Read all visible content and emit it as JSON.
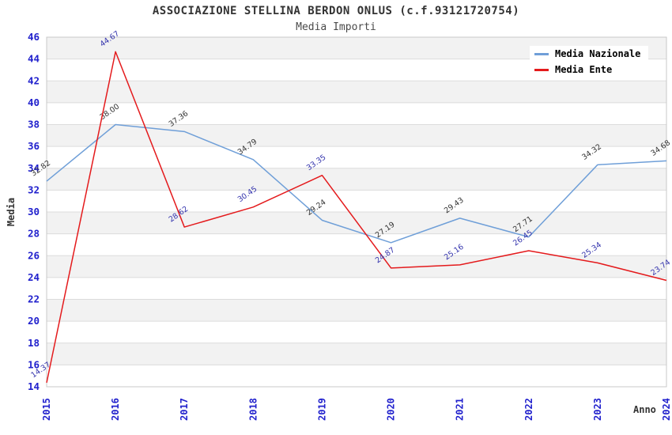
{
  "chart_data": {
    "type": "line",
    "title": "ASSOCIAZIONE STELLINA BERDON ONLUS (c.f.93121720754)",
    "subtitle": "Media Importi",
    "xlabel": "Anno",
    "ylabel": "Media",
    "ylim": [
      14,
      46
    ],
    "ytick_step": 2,
    "grid": "horizontal-gridlines-with-alternating-bands",
    "legend_position": "top-right",
    "categories": [
      "2015",
      "2016",
      "2017",
      "2018",
      "2019",
      "2020",
      "2021",
      "2022",
      "2023",
      "2024"
    ],
    "series": [
      {
        "name": "Media Nazionale",
        "color": "#6f9fd8",
        "label_color": "#333333",
        "values": [
          32.82,
          38.0,
          37.36,
          34.79,
          29.24,
          27.19,
          29.43,
          27.71,
          34.32,
          34.68
        ]
      },
      {
        "name": "Media Ente",
        "color": "#e41a1c",
        "label_color": "#3434ad",
        "values": [
          14.37,
          44.67,
          28.62,
          30.45,
          33.35,
          24.87,
          25.16,
          26.45,
          25.34,
          23.74
        ]
      }
    ]
  },
  "colors": {
    "tick_label": "#2121cd",
    "band_fill": "#f2f2f2",
    "gridline": "#dcdcdc",
    "plot_border": "#c8c8c8",
    "title_text": "#333333",
    "axis_title_text": "#333333",
    "background": "#ffffff"
  }
}
